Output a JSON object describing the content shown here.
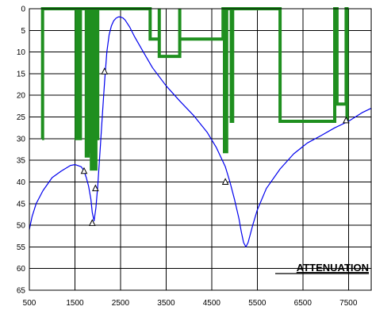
{
  "chart_data": {
    "type": "line",
    "title": "ATTENUATION",
    "xlim": [
      500,
      8000
    ],
    "ylim": [
      0,
      65
    ],
    "y_inverted": true,
    "grid": true,
    "colors": {
      "curve": "#0000ee",
      "bars": "#1f8f1f",
      "markers": "#000000"
    },
    "x_ticks": [
      "500",
      "1500",
      "2500",
      "3500",
      "4500",
      "5500",
      "6500",
      "7500"
    ],
    "y_ticks": [
      "0",
      "5",
      "10",
      "15",
      "20",
      "25",
      "30",
      "35",
      "40",
      "45",
      "50",
      "55",
      "60",
      "65"
    ],
    "x_tick_values": [
      500,
      1500,
      2500,
      3500,
      4500,
      5500,
      6500,
      7500
    ],
    "y_tick_values": [
      0,
      5,
      10,
      15,
      20,
      25,
      30,
      35,
      40,
      45,
      50,
      55,
      60,
      65
    ],
    "series": [
      {
        "kind": "curve",
        "x": [
          500,
          560,
          650,
          800,
          1000,
          1200,
          1400,
          1500,
          1560,
          1640,
          1700,
          1750,
          1800,
          1850,
          1880,
          1920,
          1960,
          2000,
          2050,
          2100,
          2150,
          2200,
          2250,
          2300,
          2350,
          2400,
          2450,
          2500,
          2550,
          2600,
          2700,
          2800,
          3000,
          3200,
          3500,
          3800,
          4100,
          4400,
          4600,
          4800,
          4900,
          5000,
          5100,
          5150,
          5200,
          5250,
          5300,
          5400,
          5500,
          5700,
          6000,
          6300,
          6600,
          6900,
          7200,
          7500,
          7800,
          8000
        ],
        "y": [
          51,
          48,
          45,
          42,
          39,
          37.5,
          36.2,
          36,
          36.2,
          36.5,
          37.5,
          39,
          41,
          44,
          47,
          49,
          46,
          41,
          33,
          25,
          17,
          10,
          6,
          4,
          2.8,
          2.2,
          1.9,
          1.9,
          2.1,
          2.6,
          4.2,
          6.3,
          10,
          13.6,
          17.8,
          21.3,
          24.6,
          28.5,
          32,
          36.5,
          40,
          44,
          48.5,
          51.5,
          54,
          55,
          54,
          50,
          46.5,
          41.5,
          37,
          33.5,
          31,
          29.3,
          27.5,
          26,
          24,
          23
        ]
      },
      {
        "kind": "step",
        "x": [
          780,
          790,
          790,
          860,
          860,
          880,
          880,
          1530,
          1530,
          1550,
          1550,
          1600,
          1600,
          1620,
          1620,
          1750,
          1750,
          1760,
          1760,
          1770,
          1770,
          1790,
          1790,
          1800,
          1800,
          1810,
          1810,
          1820,
          1820,
          1840,
          1840,
          1860,
          1860,
          1880,
          1880,
          1900,
          1900,
          1920,
          1920,
          1940,
          1940,
          1960,
          1960,
          1980,
          1980,
          2000,
          2000,
          3150,
          3150,
          3350,
          3350,
          3350,
          3350,
          3800,
          3800,
          3800,
          3800,
          4750,
          4750,
          4780,
          4780,
          4830,
          4830,
          4930,
          4930,
          4960,
          4960,
          6000,
          6000,
          7200,
          7200,
          7250,
          7250,
          7450,
          7450,
          7470,
          7470
        ],
        "y": [
          30,
          30,
          0,
          0,
          0,
          0,
          0,
          0,
          30,
          30,
          0,
          0,
          30,
          30,
          0,
          0,
          34,
          34,
          0,
          0,
          34,
          34,
          0,
          0,
          30,
          30,
          0,
          0,
          33,
          33,
          0,
          0,
          37,
          37,
          0,
          0,
          30,
          30,
          0,
          0,
          37,
          37,
          0,
          0,
          30,
          30,
          0,
          0,
          7,
          7,
          0,
          0,
          11,
          11,
          0,
          0,
          7,
          7,
          0,
          0,
          33,
          33,
          0,
          0,
          26,
          26,
          0,
          0,
          26,
          26,
          0,
          0,
          22,
          22,
          0,
          0,
          26
        ]
      },
      {
        "kind": "markers",
        "x": [
          1700,
          1880,
          1950,
          2150,
          4800,
          7450
        ],
        "y": [
          37.5,
          49.5,
          41.5,
          14.5,
          40,
          25.8
        ]
      }
    ]
  }
}
